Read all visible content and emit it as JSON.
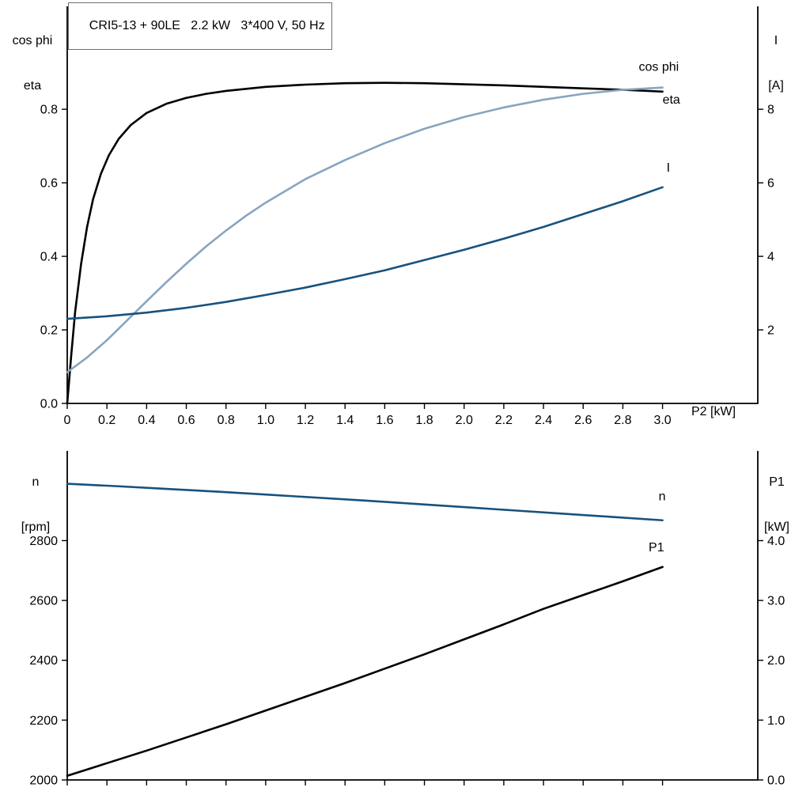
{
  "colors": {
    "black_curve": "#000000",
    "light_blue_curve": "#87a5c0",
    "dark_blue_curve": "#17527e",
    "axis": "#000000",
    "background": "#ffffff"
  },
  "chart_data": [
    {
      "type": "line",
      "title": "CRI5-13 + 90LE   2.2 kW   3*400 V, 50 Hz",
      "xlabel": "P2 [kW]",
      "ylabel_left": [
        "cos phi",
        "eta"
      ],
      "ylabel_right": [
        "I",
        "[A]"
      ],
      "xlim": [
        0,
        3.48
      ],
      "ylim_left": [
        0,
        1.08
      ],
      "ylim_right": [
        0,
        10.8
      ],
      "grid": false,
      "legend_position": "inline-labels",
      "xticks": {
        "values": [
          0,
          0.2,
          0.4,
          0.6,
          0.8,
          1.0,
          1.2,
          1.4,
          1.6,
          1.8,
          2.0,
          2.2,
          2.4,
          2.6,
          2.8,
          3.0
        ],
        "labels": [
          "0",
          "0.2",
          "0.4",
          "0.6",
          "0.8",
          "1.0",
          "1.2",
          "1.4",
          "1.6",
          "1.8",
          "2.0",
          "2.2",
          "2.4",
          "2.6",
          "2.8",
          "3.0"
        ]
      },
      "yticks_left": {
        "values": [
          0,
          0.2,
          0.4,
          0.6,
          0.8
        ],
        "labels": [
          "0.0",
          "0.2",
          "0.4",
          "0.6",
          "0.8"
        ]
      },
      "yticks_right": {
        "values": [
          2,
          4,
          6,
          8
        ],
        "labels": [
          "2",
          "4",
          "6",
          "8"
        ]
      },
      "series": [
        {
          "name": "eta",
          "axis": "left",
          "color": "#000000",
          "x": [
            0,
            0.02,
            0.04,
            0.07,
            0.1,
            0.13,
            0.17,
            0.21,
            0.26,
            0.32,
            0.4,
            0.5,
            0.6,
            0.7,
            0.8,
            1.0,
            1.2,
            1.4,
            1.6,
            1.8,
            2.0,
            2.2,
            2.4,
            2.6,
            2.8,
            3.0
          ],
          "y": [
            0,
            0.13,
            0.25,
            0.38,
            0.48,
            0.555,
            0.625,
            0.675,
            0.72,
            0.757,
            0.79,
            0.815,
            0.831,
            0.842,
            0.85,
            0.861,
            0.867,
            0.871,
            0.872,
            0.871,
            0.868,
            0.865,
            0.861,
            0.857,
            0.853,
            0.848
          ],
          "label": {
            "text": "eta",
            "x": 3.0,
            "y": 0.815,
            "anchor": "start"
          }
        },
        {
          "name": "cos phi",
          "axis": "left",
          "color": "#87a5c0",
          "x": [
            0,
            0.1,
            0.2,
            0.3,
            0.4,
            0.5,
            0.6,
            0.7,
            0.8,
            0.9,
            1.0,
            1.2,
            1.4,
            1.6,
            1.8,
            2.0,
            2.2,
            2.4,
            2.6,
            2.8,
            3.0
          ],
          "y": [
            0.085,
            0.125,
            0.172,
            0.225,
            0.278,
            0.33,
            0.38,
            0.427,
            0.47,
            0.51,
            0.546,
            0.61,
            0.662,
            0.708,
            0.747,
            0.779,
            0.805,
            0.826,
            0.842,
            0.853,
            0.859
          ],
          "label": {
            "text": "cos phi",
            "x": 2.88,
            "y": 0.905,
            "anchor": "start"
          }
        },
        {
          "name": "I",
          "axis": "right",
          "color": "#17527e",
          "x": [
            0,
            0.2,
            0.4,
            0.6,
            0.8,
            1.0,
            1.2,
            1.4,
            1.6,
            1.8,
            2.0,
            2.2,
            2.4,
            2.6,
            2.8,
            3.0
          ],
          "y": [
            2.3,
            2.37,
            2.47,
            2.6,
            2.76,
            2.95,
            3.15,
            3.38,
            3.62,
            3.9,
            4.18,
            4.48,
            4.8,
            5.15,
            5.5,
            5.88
          ],
          "label": {
            "text": "I",
            "x": 3.02,
            "y": 6.3,
            "anchor": "start"
          }
        }
      ]
    },
    {
      "type": "line",
      "title": "",
      "xlabel": "",
      "ylabel_left": [
        "n",
        "[rpm]"
      ],
      "ylabel_right": [
        "P1",
        "[kW]"
      ],
      "xlim": [
        0,
        3.48
      ],
      "ylim_left": [
        2000,
        3100
      ],
      "ylim_right": [
        0,
        5.5
      ],
      "grid": false,
      "legend_position": "inline-labels",
      "xticks": {
        "values": [
          0,
          0.2,
          0.4,
          0.6,
          0.8,
          1.0,
          1.2,
          1.4,
          1.6,
          1.8,
          2.0,
          2.2,
          2.4,
          2.6,
          2.8,
          3.0
        ],
        "labels": []
      },
      "yticks_left": {
        "values": [
          2000,
          2200,
          2400,
          2600,
          2800
        ],
        "labels": [
          "2000",
          "2200",
          "2400",
          "2600",
          "2800"
        ]
      },
      "yticks_right": {
        "values": [
          0,
          1,
          2,
          3,
          4
        ],
        "labels": [
          "0.0",
          "1.0",
          "2.0",
          "3.0",
          "4.0"
        ]
      },
      "series": [
        {
          "name": "n",
          "axis": "left",
          "color": "#17527e",
          "x": [
            0,
            0.25,
            0.5,
            0.75,
            1.0,
            1.25,
            1.5,
            1.75,
            2.0,
            2.25,
            2.5,
            2.75,
            3.0
          ],
          "y": [
            2990,
            2982,
            2973,
            2964,
            2954,
            2944,
            2934,
            2923,
            2912,
            2901,
            2890,
            2879,
            2868
          ],
          "label": {
            "text": "n",
            "x": 2.98,
            "y": 2935,
            "anchor": "start"
          }
        },
        {
          "name": "P1",
          "axis": "right",
          "color": "#000000",
          "x": [
            0,
            0.2,
            0.4,
            0.6,
            0.8,
            1.0,
            1.2,
            1.4,
            1.6,
            1.8,
            2.0,
            2.2,
            2.4,
            2.6,
            2.8,
            3.0
          ],
          "y": [
            0.07,
            0.28,
            0.49,
            0.71,
            0.93,
            1.16,
            1.39,
            1.62,
            1.86,
            2.1,
            2.35,
            2.6,
            2.86,
            3.09,
            3.32,
            3.56
          ],
          "label": {
            "text": "P1",
            "x": 2.93,
            "y": 3.82,
            "anchor": "start"
          }
        }
      ]
    }
  ]
}
